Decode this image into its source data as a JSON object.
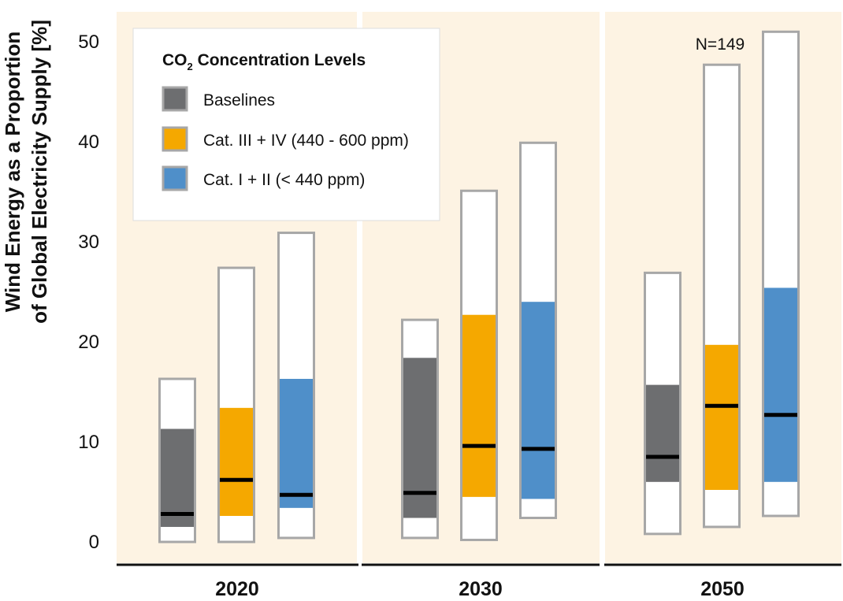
{
  "chart_data": {
    "type": "bar",
    "ylabel_line1": "Wind Energy as a Proportion",
    "ylabel_line2": "of Global Electricity Supply [%]",
    "ylim": [
      0,
      52
    ],
    "yticks": [
      "0",
      "10",
      "20",
      "30",
      "40",
      "50"
    ],
    "ytick_values": [
      0,
      10,
      20,
      30,
      40,
      50
    ],
    "grid": false,
    "legend_position": "top-left",
    "legend": {
      "title_main": "CO",
      "title_sub": "2",
      "title_rest": " Concentration Levels",
      "items": [
        {
          "label": "Baselines",
          "color": "#6d6e70"
        },
        {
          "label": "Cat. III + IV (440 - 600 ppm)",
          "color": "#f5a800"
        },
        {
          "label": "Cat. I + II (< 440 ppm)",
          "color": "#4f8fc9"
        }
      ]
    },
    "annotation": "N=149",
    "panel_background": "#fdf3e3",
    "median_color": "#000000",
    "whisker_color": "#ffffff",
    "border_color": "#a7a7a7",
    "groups": [
      {
        "year": "2020",
        "bars": [
          {
            "series": "Baselines",
            "min": 0,
            "p25": 1.5,
            "median": 2.8,
            "p75": 11.3,
            "max": 16.3
          },
          {
            "series": "Cat. III + IV (440 - 600 ppm)",
            "min": 0,
            "p25": 2.6,
            "median": 6.2,
            "p75": 13.4,
            "max": 27.4
          },
          {
            "series": "Cat. I + II (< 440 ppm)",
            "min": 0.4,
            "p25": 3.4,
            "median": 4.7,
            "p75": 16.3,
            "max": 30.9
          }
        ]
      },
      {
        "year": "2030",
        "bars": [
          {
            "series": "Baselines",
            "min": 0.4,
            "p25": 2.4,
            "median": 4.9,
            "p75": 18.4,
            "max": 22.2
          },
          {
            "series": "Cat. III + IV (440 - 600 ppm)",
            "min": 0.2,
            "p25": 4.5,
            "median": 9.6,
            "p75": 22.7,
            "max": 35.1
          },
          {
            "series": "Cat. I + II (< 440 ppm)",
            "min": 2.4,
            "p25": 4.3,
            "median": 9.3,
            "p75": 24.0,
            "max": 39.9
          }
        ]
      },
      {
        "year": "2050",
        "bars": [
          {
            "series": "Baselines",
            "min": 0.8,
            "p25": 6.0,
            "median": 8.5,
            "p75": 15.7,
            "max": 26.9
          },
          {
            "series": "Cat. III + IV (440 - 600 ppm)",
            "min": 1.5,
            "p25": 5.2,
            "median": 13.6,
            "p75": 19.7,
            "max": 47.7
          },
          {
            "series": "Cat. I + II (< 440 ppm)",
            "min": 2.6,
            "p25": 6.0,
            "median": 12.7,
            "p75": 25.4,
            "max": 51.0
          }
        ]
      }
    ]
  }
}
